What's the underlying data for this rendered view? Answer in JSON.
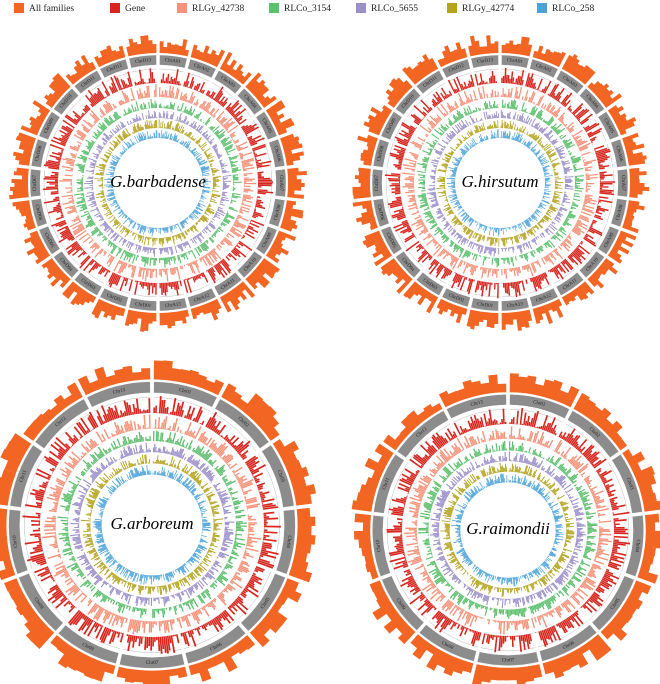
{
  "legend": [
    {
      "label": "All families",
      "color": "#f26522"
    },
    {
      "label": "Gene",
      "color": "#d7261e"
    },
    {
      "label": "RLGy_42738",
      "color": "#f4937a"
    },
    {
      "label": "RLCo_3154",
      "color": "#5bbf6b"
    },
    {
      "label": "RLCo_5655",
      "color": "#9b8fc9"
    },
    {
      "label": "RLGy_42774",
      "color": "#b3a21c"
    },
    {
      "label": "RLCo_258",
      "color": "#4aa3d8"
    }
  ],
  "plots": [
    {
      "title": "G.barbadense",
      "chromosomes": [
        "ChrA01",
        "ChrA02",
        "ChrA03",
        "ChrA04",
        "ChrA05",
        "ChrA06",
        "ChrA07",
        "ChrA08",
        "ChrA09",
        "ChrA10",
        "ChrA11",
        "ChrA12",
        "ChrA13",
        "ChrD01",
        "ChrD02",
        "ChrD03",
        "ChrD04",
        "ChrD05",
        "ChrD06",
        "ChrD07",
        "ChrD08",
        "ChrD09",
        "ChrD10",
        "ChrD11",
        "ChrD12",
        "ChrD13"
      ]
    },
    {
      "title": "G.hirsutum",
      "chromosomes": [
        "ChrA01",
        "ChrA02",
        "ChrA03",
        "ChrA04",
        "ChrA05",
        "ChrA06",
        "ChrA07",
        "ChrA08",
        "ChrA09",
        "ChrA10",
        "ChrA11",
        "ChrA12",
        "ChrA13",
        "ChrD01",
        "ChrD02",
        "ChrD03",
        "ChrD04",
        "ChrD05",
        "ChrD06",
        "ChrD07",
        "ChrD08",
        "ChrD09",
        "ChrD10",
        "ChrD11",
        "ChrD12",
        "ChrD13"
      ]
    },
    {
      "title": "G.arboreum",
      "chromosomes": [
        "Chr01",
        "Chr02",
        "Chr03",
        "Chr04",
        "Chr05",
        "Chr06",
        "Chr07",
        "Chr08",
        "Chr09",
        "Chr10",
        "Chr11",
        "Chr12",
        "Chr13"
      ]
    },
    {
      "title": "G.raimondii",
      "chromosomes": [
        "Chr01",
        "Chr02",
        "Chr03",
        "Chr04",
        "Chr05",
        "Chr06",
        "Chr07",
        "Chr08",
        "Chr09",
        "Chr10",
        "Chr11",
        "Chr12",
        "Chr13"
      ]
    }
  ]
}
